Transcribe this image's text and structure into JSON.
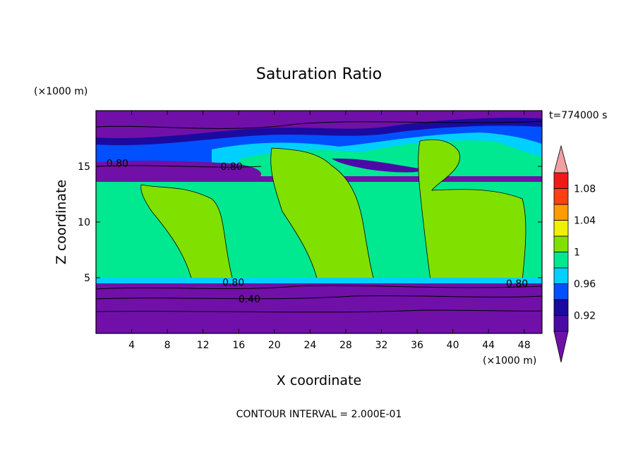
{
  "chart_data": {
    "type": "heatmap",
    "title": "Saturation Ratio",
    "xlabel": "X coordinate",
    "ylabel": "Z coordinate",
    "x_unit": "(×1000 m)",
    "y_unit": "(×1000 m)",
    "time_label": "t=774000 s",
    "footer": "CONTOUR INTERVAL = 2.000E-01",
    "xlim": [
      0,
      50
    ],
    "ylim": [
      0,
      20
    ],
    "x_ticks": [
      4,
      8,
      12,
      16,
      20,
      24,
      28,
      32,
      36,
      40,
      44,
      48
    ],
    "y_ticks": [
      5,
      10,
      15
    ],
    "contour_labels": [
      {
        "text": "0.80",
        "x": 2.4,
        "z": 15.3
      },
      {
        "text": "0.80",
        "x": 15.2,
        "z": 15.0
      },
      {
        "text": "0.80",
        "x": 15.4,
        "z": 4.6
      },
      {
        "text": "0.40",
        "x": 17.2,
        "z": 3.1
      },
      {
        "text": "0.80",
        "x": 47.2,
        "z": 4.5
      }
    ],
    "colorbar": {
      "levels": [
        0.9,
        0.92,
        0.94,
        0.96,
        0.98,
        1.0,
        1.02,
        1.04,
        1.06,
        1.08,
        1.1
      ],
      "tick_labels": [
        "0.92",
        "0.96",
        "1",
        "1.04",
        "1.08"
      ],
      "colors": [
        "#4b0aa8",
        "#1a0aa0",
        "#0050ff",
        "#00d0ff",
        "#00e890",
        "#80e000",
        "#f0f000",
        "#ff9a00",
        "#ff4010",
        "#f01818"
      ],
      "under_color": "#7010a8",
      "over_color": "#f0a0a0"
    },
    "regions": {
      "lower_layer_color": "#7010a8",
      "moist_layer_color": "#00e890",
      "cloud_color": "#80e000",
      "upper_layer_color": "#7010a8"
    }
  }
}
